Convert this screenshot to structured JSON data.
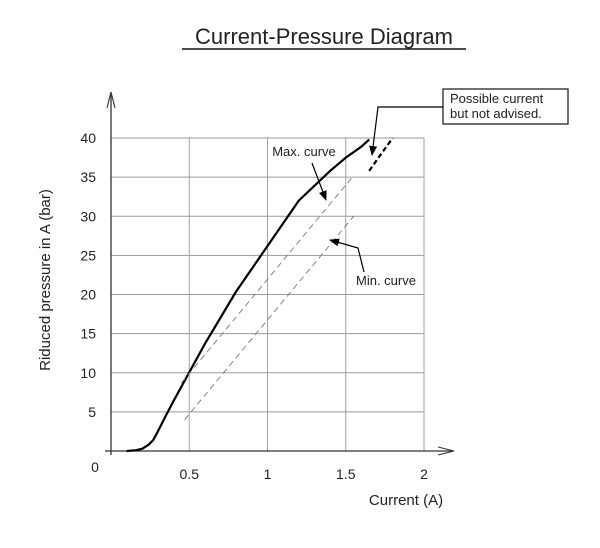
{
  "chart_data": {
    "type": "line",
    "title": "Current-Pressure Diagram",
    "xlabel": "Current (A)",
    "ylabel": "Riduced pressure in A (bar)",
    "xlim": [
      0,
      2
    ],
    "ylim": [
      0,
      40
    ],
    "x_ticks": [
      0.5,
      1,
      1.5,
      2
    ],
    "x_tick_labels": [
      "0.5",
      "1",
      "1.5",
      "2"
    ],
    "y_ticks": [
      5,
      10,
      15,
      20,
      25,
      30,
      35,
      40
    ],
    "y_tick_labels": [
      "5",
      "10",
      "15",
      "20",
      "25",
      "30",
      "35",
      "40"
    ],
    "origin_label": "0",
    "grid": true,
    "series": [
      {
        "style": "solid",
        "x": [
          0.1,
          0.16,
          0.2,
          0.24,
          0.27,
          0.3,
          0.35,
          0.4,
          0.6,
          0.8,
          1.0,
          1.2,
          1.4,
          1.5,
          1.6,
          1.65
        ],
        "y": [
          0,
          0.1,
          0.3,
          0.8,
          1.4,
          2.5,
          4.5,
          6.4,
          13.7,
          20.4,
          26.2,
          32.0,
          35.8,
          37.5,
          38.9,
          39.8
        ]
      },
      {
        "style": "dashed",
        "x": [
          1.65,
          1.72,
          1.8
        ],
        "y": [
          35.8,
          37.8,
          40
        ]
      },
      {
        "style": "thin-dashed",
        "x": [
          0.45,
          1.55
        ],
        "y": [
          8.7,
          35.2
        ]
      },
      {
        "style": "thin-dashed",
        "x": [
          0.47,
          1.55
        ],
        "y": [
          4.0,
          30.0
        ]
      }
    ],
    "annotations": {
      "max_curve": "Max. curve",
      "min_curve": "Min. curve",
      "possible_line1": "Possible current",
      "possible_line2": "but not advised."
    }
  }
}
